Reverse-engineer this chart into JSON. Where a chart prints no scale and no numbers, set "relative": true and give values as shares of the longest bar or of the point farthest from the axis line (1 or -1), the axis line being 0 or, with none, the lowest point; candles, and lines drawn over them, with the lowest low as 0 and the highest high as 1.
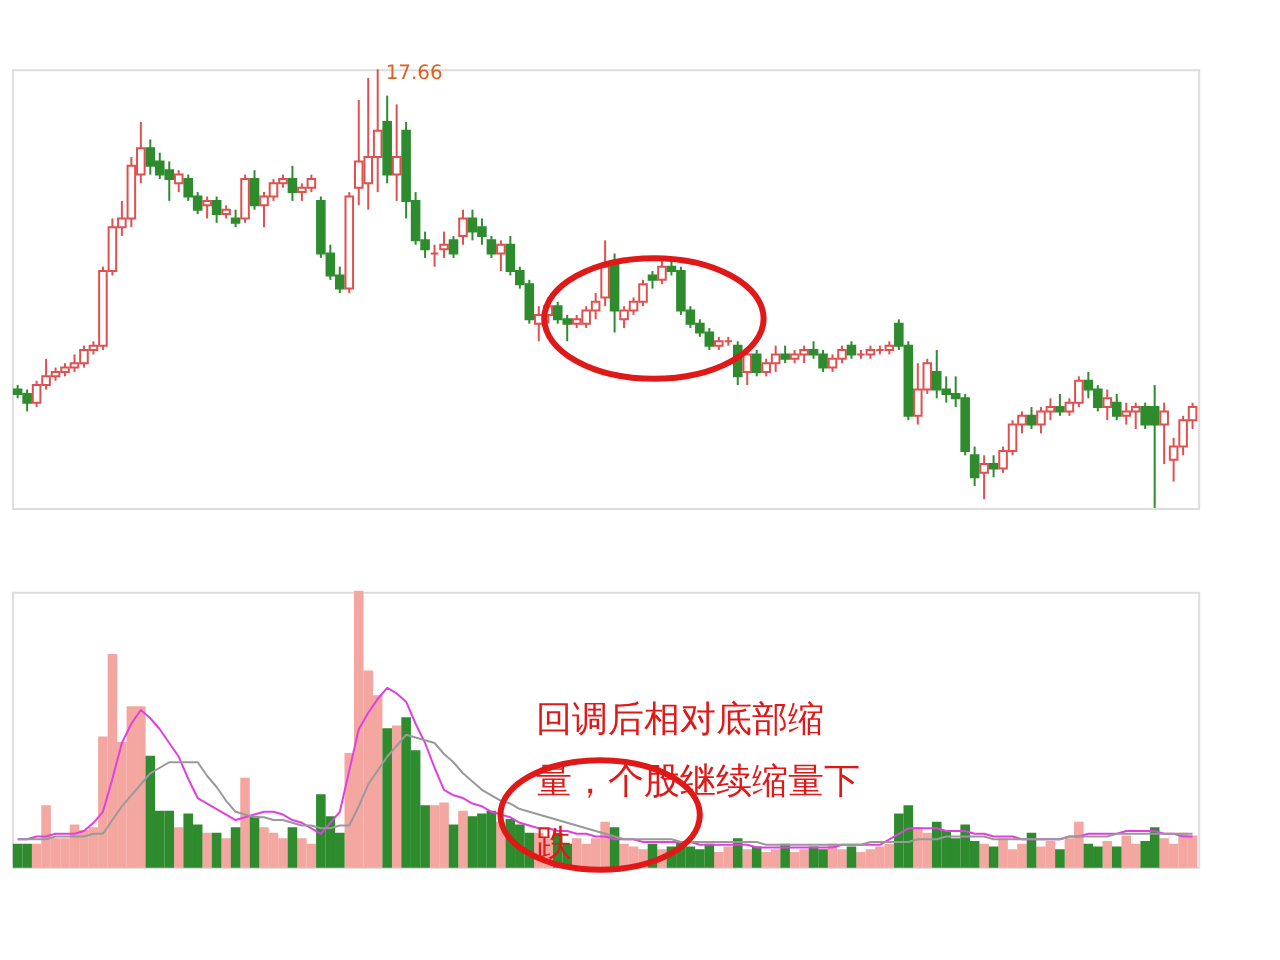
{
  "chart_data": [
    {
      "type": "candlestick",
      "relative": true,
      "annotations": [
        "17.66"
      ],
      "categories": [
        null,
        null,
        null,
        null,
        null,
        null,
        null,
        null,
        null,
        null,
        null,
        null,
        null,
        null,
        null,
        null,
        null,
        null,
        null,
        null,
        null,
        null,
        null,
        null,
        null,
        null,
        null,
        null,
        null,
        null,
        null,
        null,
        null,
        null,
        null,
        null,
        null,
        null,
        null,
        null,
        null,
        null,
        null,
        null,
        null,
        null,
        null,
        null,
        null,
        null,
        null,
        null,
        null,
        null,
        null,
        null,
        null,
        null,
        null,
        null,
        null,
        null,
        null,
        null,
        null,
        null,
        null,
        null,
        null,
        null,
        null,
        null,
        null,
        null,
        null,
        null,
        null,
        null,
        null,
        null,
        null,
        null,
        null,
        null,
        null,
        null,
        null,
        null,
        null,
        null,
        null,
        null,
        null,
        null,
        null,
        null,
        null,
        null,
        null,
        null,
        null,
        null,
        null,
        null,
        null,
        null,
        null,
        null,
        null,
        null,
        null,
        null,
        null,
        null,
        null,
        null,
        null,
        null,
        null,
        null,
        null,
        null,
        null,
        null,
        null
      ],
      "ohlc": [
        [
          0.27,
          0.28,
          0.25,
          0.26
        ],
        [
          0.26,
          0.27,
          0.22,
          0.24
        ],
        [
          0.24,
          0.29,
          0.23,
          0.28
        ],
        [
          0.28,
          0.34,
          0.27,
          0.3
        ],
        [
          0.3,
          0.32,
          0.29,
          0.31
        ],
        [
          0.31,
          0.33,
          0.3,
          0.32
        ],
        [
          0.32,
          0.35,
          0.31,
          0.33
        ],
        [
          0.33,
          0.37,
          0.32,
          0.36
        ],
        [
          0.36,
          0.38,
          0.35,
          0.37
        ],
        [
          0.37,
          0.55,
          0.36,
          0.54
        ],
        [
          0.54,
          0.66,
          0.53,
          0.64
        ],
        [
          0.64,
          0.7,
          0.62,
          0.66
        ],
        [
          0.66,
          0.8,
          0.64,
          0.78
        ],
        [
          0.76,
          0.88,
          0.74,
          0.82
        ],
        [
          0.82,
          0.84,
          0.76,
          0.78
        ],
        [
          0.79,
          0.81,
          0.75,
          0.76
        ],
        [
          0.77,
          0.79,
          0.7,
          0.75
        ],
        [
          0.74,
          0.77,
          0.72,
          0.76
        ],
        [
          0.75,
          0.76,
          0.7,
          0.71
        ],
        [
          0.71,
          0.72,
          0.67,
          0.68
        ],
        [
          0.69,
          0.71,
          0.66,
          0.7
        ],
        [
          0.7,
          0.71,
          0.65,
          0.67
        ],
        [
          0.67,
          0.69,
          0.66,
          0.68
        ],
        [
          0.66,
          0.68,
          0.64,
          0.65
        ],
        [
          0.66,
          0.76,
          0.65,
          0.75
        ],
        [
          0.75,
          0.77,
          0.68,
          0.69
        ],
        [
          0.69,
          0.72,
          0.64,
          0.71
        ],
        [
          0.71,
          0.75,
          0.7,
          0.74
        ],
        [
          0.74,
          0.76,
          0.73,
          0.75
        ],
        [
          0.75,
          0.78,
          0.7,
          0.72
        ],
        [
          0.72,
          0.74,
          0.7,
          0.73
        ],
        [
          0.73,
          0.76,
          0.72,
          0.75
        ],
        [
          0.7,
          0.71,
          0.57,
          0.58
        ],
        [
          0.58,
          0.6,
          0.52,
          0.53
        ],
        [
          0.53,
          0.55,
          0.49,
          0.5
        ],
        [
          0.5,
          0.72,
          0.49,
          0.71
        ],
        [
          0.73,
          0.93,
          0.69,
          0.79
        ],
        [
          0.74,
          0.98,
          0.68,
          0.8
        ],
        [
          0.8,
          1.0,
          0.72,
          0.86
        ],
        [
          0.88,
          0.94,
          0.74,
          0.76
        ],
        [
          0.76,
          0.92,
          0.7,
          0.8
        ],
        [
          0.86,
          0.88,
          0.66,
          0.7
        ],
        [
          0.7,
          0.72,
          0.6,
          0.61
        ],
        [
          0.61,
          0.63,
          0.57,
          0.59
        ],
        [
          0.58,
          0.6,
          0.55,
          0.58
        ],
        [
          0.59,
          0.63,
          0.57,
          0.6
        ],
        [
          0.61,
          0.62,
          0.57,
          0.58
        ],
        [
          0.62,
          0.68,
          0.6,
          0.66
        ],
        [
          0.66,
          0.68,
          0.61,
          0.63
        ],
        [
          0.64,
          0.66,
          0.6,
          0.62
        ],
        [
          0.61,
          0.62,
          0.57,
          0.58
        ],
        [
          0.58,
          0.61,
          0.54,
          0.6
        ],
        [
          0.6,
          0.62,
          0.53,
          0.54
        ],
        [
          0.54,
          0.55,
          0.5,
          0.51
        ],
        [
          0.51,
          0.52,
          0.42,
          0.43
        ],
        [
          0.42,
          0.46,
          0.38,
          0.44
        ],
        [
          0.44,
          0.48,
          0.42,
          0.46
        ],
        [
          0.46,
          0.47,
          0.42,
          0.43
        ],
        [
          0.43,
          0.44,
          0.38,
          0.42
        ],
        [
          0.42,
          0.44,
          0.41,
          0.43
        ],
        [
          0.42,
          0.46,
          0.41,
          0.45
        ],
        [
          0.45,
          0.49,
          0.43,
          0.47
        ],
        [
          0.48,
          0.61,
          0.46,
          0.55
        ],
        [
          0.56,
          0.58,
          0.4,
          0.45
        ],
        [
          0.43,
          0.46,
          0.41,
          0.45
        ],
        [
          0.45,
          0.48,
          0.44,
          0.47
        ],
        [
          0.47,
          0.52,
          0.46,
          0.51
        ],
        [
          0.53,
          0.54,
          0.5,
          0.52
        ],
        [
          0.52,
          0.57,
          0.51,
          0.55
        ],
        [
          0.55,
          0.57,
          0.53,
          0.54
        ],
        [
          0.54,
          0.55,
          0.44,
          0.45
        ],
        [
          0.45,
          0.46,
          0.41,
          0.42
        ],
        [
          0.42,
          0.43,
          0.39,
          0.4
        ],
        [
          0.4,
          0.41,
          0.36,
          0.37
        ],
        [
          0.37,
          0.39,
          0.36,
          0.38
        ],
        [
          0.38,
          0.39,
          0.37,
          0.38
        ],
        [
          0.37,
          0.38,
          0.28,
          0.3
        ],
        [
          0.31,
          0.36,
          0.28,
          0.35
        ],
        [
          0.35,
          0.36,
          0.3,
          0.31
        ],
        [
          0.31,
          0.34,
          0.3,
          0.33
        ],
        [
          0.33,
          0.37,
          0.31,
          0.35
        ],
        [
          0.35,
          0.37,
          0.33,
          0.34
        ],
        [
          0.34,
          0.36,
          0.33,
          0.35
        ],
        [
          0.35,
          0.37,
          0.33,
          0.36
        ],
        [
          0.36,
          0.38,
          0.34,
          0.35
        ],
        [
          0.35,
          0.36,
          0.31,
          0.32
        ],
        [
          0.32,
          0.35,
          0.31,
          0.34
        ],
        [
          0.34,
          0.37,
          0.33,
          0.36
        ],
        [
          0.37,
          0.38,
          0.34,
          0.35
        ],
        [
          0.35,
          0.36,
          0.34,
          0.35
        ],
        [
          0.35,
          0.37,
          0.34,
          0.36
        ],
        [
          0.36,
          0.37,
          0.35,
          0.36
        ],
        [
          0.36,
          0.38,
          0.35,
          0.37
        ],
        [
          0.42,
          0.43,
          0.36,
          0.37
        ],
        [
          0.37,
          0.38,
          0.2,
          0.21
        ],
        [
          0.21,
          0.33,
          0.19,
          0.27
        ],
        [
          0.27,
          0.34,
          0.26,
          0.33
        ],
        [
          0.31,
          0.36,
          0.25,
          0.27
        ],
        [
          0.27,
          0.3,
          0.24,
          0.26
        ],
        [
          0.26,
          0.3,
          0.23,
          0.25
        ],
        [
          0.25,
          0.26,
          0.12,
          0.13
        ],
        [
          0.12,
          0.14,
          0.05,
          0.07
        ],
        [
          0.08,
          0.12,
          0.02,
          0.1
        ],
        [
          0.1,
          0.12,
          0.07,
          0.09
        ],
        [
          0.09,
          0.14,
          0.08,
          0.13
        ],
        [
          0.13,
          0.2,
          0.12,
          0.19
        ],
        [
          0.19,
          0.22,
          0.17,
          0.21
        ],
        [
          0.21,
          0.23,
          0.18,
          0.19
        ],
        [
          0.19,
          0.23,
          0.17,
          0.22
        ],
        [
          0.22,
          0.25,
          0.2,
          0.23
        ],
        [
          0.23,
          0.26,
          0.21,
          0.22
        ],
        [
          0.22,
          0.25,
          0.21,
          0.24
        ],
        [
          0.24,
          0.3,
          0.23,
          0.29
        ],
        [
          0.29,
          0.31,
          0.25,
          0.27
        ],
        [
          0.27,
          0.28,
          0.22,
          0.23
        ],
        [
          0.23,
          0.27,
          0.2,
          0.25
        ],
        [
          0.24,
          0.26,
          0.2,
          0.21
        ],
        [
          0.21,
          0.24,
          0.19,
          0.22
        ],
        [
          0.22,
          0.24,
          0.18,
          0.23
        ],
        [
          0.23,
          0.24,
          0.18,
          0.19
        ],
        [
          0.23,
          0.28,
          0.0,
          0.19
        ],
        [
          0.19,
          0.24,
          0.1,
          0.22
        ],
        [
          0.11,
          0.16,
          0.06,
          0.14
        ],
        [
          0.14,
          0.21,
          0.12,
          0.2
        ],
        [
          0.2,
          0.24,
          0.18,
          0.23
        ]
      ]
    },
    {
      "type": "bar",
      "relative": true,
      "annotations": [
        "回调后相对底部缩量，个股继续缩量下跌"
      ],
      "categories": [
        null,
        null,
        null,
        null,
        null,
        null,
        null,
        null,
        null,
        null,
        null,
        null,
        null,
        null,
        null,
        null,
        null,
        null,
        null,
        null,
        null,
        null,
        null,
        null,
        null,
        null,
        null,
        null,
        null,
        null,
        null,
        null,
        null,
        null,
        null,
        null,
        null,
        null,
        null,
        null,
        null,
        null,
        null,
        null,
        null,
        null,
        null,
        null,
        null,
        null,
        null,
        null,
        null,
        null,
        null,
        null,
        null,
        null,
        null,
        null,
        null,
        null,
        null,
        null,
        null,
        null,
        null,
        null,
        null,
        null,
        null,
        null,
        null,
        null,
        null,
        null,
        null,
        null,
        null,
        null,
        null,
        null,
        null,
        null,
        null,
        null,
        null,
        null,
        null,
        null,
        null,
        null,
        null,
        null,
        null,
        null,
        null,
        null,
        null,
        null,
        null,
        null,
        null,
        null,
        null,
        null,
        null,
        null,
        null,
        null,
        null,
        null,
        null,
        null,
        null,
        null,
        null,
        null,
        null,
        null,
        null,
        null,
        null,
        null,
        null
      ],
      "series": [
        {
          "color": "#f4a7a0",
          "values": [
            null,
            null,
            0.08,
            0.22,
            0.1,
            0.1,
            0.15,
            0.13,
            0.14,
            0.47,
            0.77,
            0.45,
            0.58,
            0.58,
            null,
            null,
            null,
            0.14,
            null,
            null,
            0.12,
            null,
            0.1,
            null,
            0.32,
            null,
            0.14,
            0.12,
            0.1,
            null,
            0.1,
            0.08,
            null,
            null,
            null,
            0.41,
            1.0,
            0.71,
            0.62,
            null,
            0.51,
            null,
            null,
            null,
            0.22,
            0.23,
            null,
            0.2,
            null,
            null,
            null,
            0.16,
            null,
            null,
            null,
            0.12,
            0.1,
            null,
            null,
            0.1,
            0.08,
            0.1,
            0.16,
            null,
            0.08,
            0.07,
            0.06,
            null,
            0.06,
            null,
            null,
            null,
            null,
            null,
            0.05,
            0.07,
            null,
            0.06,
            null,
            0.05,
            0.06,
            null,
            0.05,
            0.06,
            null,
            null,
            0.08,
            0.06,
            null,
            0.05,
            0.06,
            0.07,
            0.08,
            null,
            null,
            0.14,
            0.12,
            null,
            null,
            null,
            null,
            null,
            0.08,
            null,
            0.1,
            0.06,
            0.08,
            null,
            0.07,
            0.09,
            null,
            0.1,
            0.16,
            null,
            null,
            0.09,
            null,
            0.11,
            0.08,
            null,
            null,
            0.1,
            0.08,
            0.12,
            0.11
          ]
        },
        {
          "color": "#2e8b2e",
          "values": [
            0.08,
            0.08,
            null,
            null,
            null,
            null,
            null,
            null,
            null,
            null,
            null,
            null,
            null,
            null,
            0.4,
            0.2,
            0.2,
            null,
            0.19,
            0.15,
            null,
            0.12,
            null,
            0.14,
            null,
            0.18,
            null,
            null,
            null,
            0.14,
            null,
            null,
            0.26,
            0.18,
            0.12,
            null,
            null,
            null,
            null,
            0.5,
            null,
            0.54,
            0.42,
            0.22,
            null,
            null,
            0.15,
            null,
            0.18,
            0.19,
            0.2,
            null,
            0.17,
            0.15,
            0.12,
            null,
            null,
            0.12,
            0.08,
            null,
            null,
            null,
            null,
            0.14,
            null,
            null,
            null,
            0.08,
            null,
            0.07,
            0.09,
            0.07,
            0.06,
            0.08,
            null,
            null,
            0.1,
            null,
            0.07,
            null,
            null,
            0.08,
            null,
            null,
            0.07,
            0.06,
            null,
            null,
            0.07,
            null,
            null,
            null,
            null,
            0.19,
            0.22,
            null,
            null,
            0.16,
            0.13,
            0.1,
            0.15,
            0.09,
            null,
            0.07,
            null,
            null,
            null,
            0.12,
            null,
            null,
            0.06,
            null,
            null,
            0.08,
            0.07,
            null,
            0.07,
            null,
            null,
            0.09,
            0.14,
            null,
            null,
            null,
            null
          ]
        },
        {
          "type": "line",
          "color": "#e040e0",
          "values": [
            0.1,
            0.1,
            0.11,
            0.11,
            0.12,
            0.12,
            0.12,
            0.13,
            0.16,
            0.2,
            0.32,
            0.45,
            0.52,
            0.57,
            0.54,
            0.5,
            0.45,
            0.4,
            0.32,
            0.25,
            0.23,
            0.21,
            0.19,
            0.17,
            0.18,
            0.19,
            0.2,
            0.2,
            0.19,
            0.17,
            0.16,
            0.14,
            0.12,
            0.16,
            0.2,
            0.35,
            0.5,
            0.56,
            0.61,
            0.65,
            0.63,
            0.6,
            0.52,
            0.45,
            0.36,
            0.28,
            0.26,
            0.25,
            0.23,
            0.22,
            0.2,
            0.19,
            0.18,
            0.16,
            0.15,
            0.14,
            0.14,
            0.13,
            0.13,
            0.12,
            0.12,
            0.11,
            0.11,
            0.1,
            0.1,
            0.1,
            0.09,
            0.09,
            0.09,
            0.09,
            0.09,
            0.09,
            0.08,
            0.08,
            0.08,
            0.08,
            0.08,
            0.08,
            0.07,
            0.07,
            0.07,
            0.07,
            0.07,
            0.07,
            0.07,
            0.07,
            0.07,
            0.08,
            0.08,
            0.08,
            0.08,
            0.08,
            0.1,
            0.12,
            0.14,
            0.14,
            0.14,
            0.14,
            0.13,
            0.13,
            0.13,
            0.12,
            0.12,
            0.11,
            0.11,
            0.11,
            0.1,
            0.1,
            0.1,
            0.1,
            0.1,
            0.11,
            0.11,
            0.12,
            0.12,
            0.12,
            0.12,
            0.13,
            0.13,
            0.13,
            0.13,
            0.12,
            0.12,
            0.11,
            0.11
          ]
        },
        {
          "type": "line",
          "color": "#999999",
          "values": [
            0.1,
            0.1,
            0.1,
            0.1,
            0.11,
            0.11,
            0.11,
            0.11,
            0.12,
            0.12,
            0.17,
            0.22,
            0.26,
            0.3,
            0.34,
            0.36,
            0.38,
            0.38,
            0.38,
            0.38,
            0.33,
            0.29,
            0.24,
            0.2,
            0.19,
            0.18,
            0.18,
            0.17,
            0.17,
            0.16,
            0.15,
            0.15,
            0.14,
            0.14,
            0.15,
            0.15,
            0.22,
            0.3,
            0.35,
            0.4,
            0.44,
            0.48,
            0.47,
            0.46,
            0.45,
            0.41,
            0.38,
            0.34,
            0.31,
            0.28,
            0.26,
            0.24,
            0.23,
            0.21,
            0.2,
            0.19,
            0.18,
            0.17,
            0.16,
            0.15,
            0.14,
            0.13,
            0.12,
            0.11,
            0.1,
            0.1,
            0.1,
            0.1,
            0.1,
            0.1,
            0.09,
            0.09,
            0.09,
            0.09,
            0.09,
            0.09,
            0.09,
            0.09,
            0.09,
            0.08,
            0.08,
            0.08,
            0.08,
            0.08,
            0.08,
            0.08,
            0.08,
            0.08,
            0.08,
            0.08,
            0.09,
            0.09,
            0.09,
            0.09,
            0.09,
            0.1,
            0.1,
            0.1,
            0.11,
            0.11,
            0.11,
            0.11,
            0.11,
            0.1,
            0.1,
            0.1,
            0.1,
            0.1,
            0.1,
            0.1,
            0.1,
            0.11,
            0.11,
            0.11,
            0.11,
            0.11,
            0.12,
            0.12,
            0.12,
            0.12,
            0.12,
            0.12,
            0.12,
            0.12,
            0.12
          ]
        }
      ]
    }
  ]
}
